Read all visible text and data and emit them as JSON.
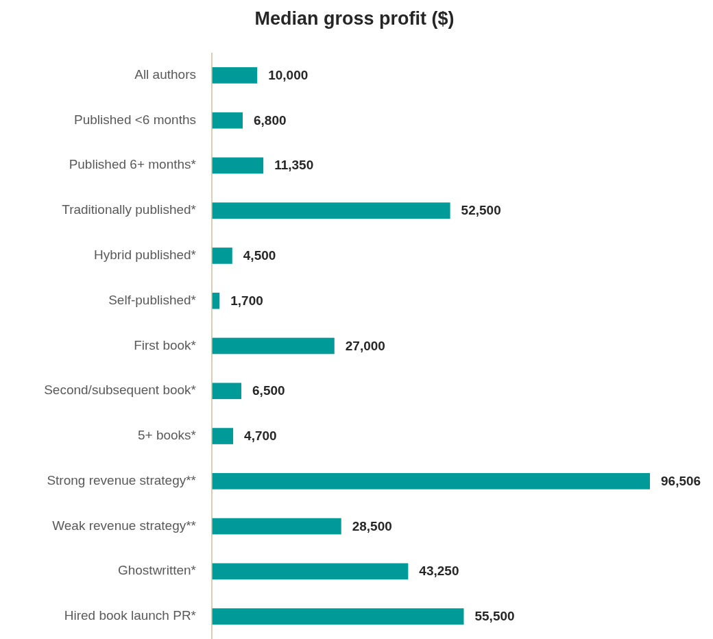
{
  "chart_data": {
    "type": "bar",
    "orientation": "horizontal",
    "title": "Median gross profit ($)",
    "categories": [
      "All authors",
      "Published <6 months",
      "Published 6+ months*",
      "Traditionally published*",
      "Hybrid published*",
      "Self-published*",
      "First book*",
      "Second/subsequent book*",
      "5+ books*",
      "Strong revenue strategy**",
      "Weak revenue strategy**",
      "Ghostwritten*",
      "Hired book launch PR*"
    ],
    "values": [
      10000,
      6800,
      11350,
      52500,
      4500,
      1700,
      27000,
      6500,
      4700,
      96506,
      28500,
      43250,
      55500
    ],
    "value_labels": [
      "10,000",
      "6,800",
      "11,350",
      "52,500",
      "4,500",
      "1,700",
      "27,000",
      "6,500",
      "4,700",
      "96,506",
      "28,500",
      "43,250",
      "55,500"
    ],
    "color": "#009b98"
  }
}
